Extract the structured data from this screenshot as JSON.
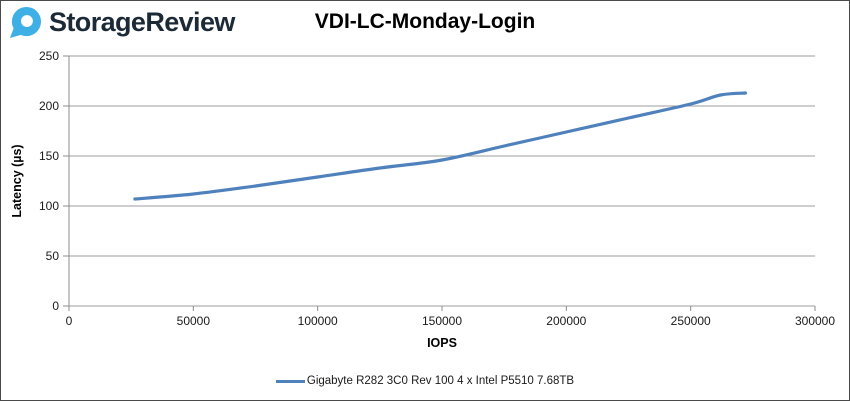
{
  "header": {
    "logo_text": "StorageReview"
  },
  "colors": {
    "series_blue": "#4F81BD",
    "grid_gray": "#9d9d9d",
    "axis_gray": "#8c8c8c",
    "tick_text": "#1a1a1a",
    "title_black": "#000000",
    "logo_blue": "#3FB0E5",
    "logo_navy": "#1b2a36",
    "frame_border": "#4a4a4a"
  },
  "chart_data": {
    "type": "line",
    "title": "VDI-LC-Monday-Login",
    "xlabel": "IOPS",
    "ylabel": "Latency (µs)",
    "xlim": [
      0,
      300000
    ],
    "ylim": [
      0,
      250
    ],
    "grid": true,
    "legend_position": "bottom-center",
    "x_ticks": [
      0,
      50000,
      100000,
      150000,
      200000,
      250000,
      300000
    ],
    "x_tick_labels": [
      "0",
      "50000",
      "100000",
      "150000",
      "200000",
      "250000",
      "300000"
    ],
    "y_ticks": [
      0,
      50,
      100,
      150,
      200,
      250
    ],
    "y_tick_labels": [
      "0",
      "50",
      "100",
      "150",
      "200",
      "250"
    ],
    "series": [
      {
        "name": "Gigabyte R282 3C0 Rev 100 4 x Intel P5510 7.68TB",
        "color": "#4F81BD",
        "x": [
          26500,
          50000,
          75000,
          100000,
          125000,
          150000,
          175000,
          200000,
          225000,
          250000,
          262000,
          272000
        ],
        "y": [
          107,
          112,
          120,
          129,
          138,
          146,
          160,
          174,
          188,
          202,
          211,
          213
        ]
      }
    ]
  }
}
